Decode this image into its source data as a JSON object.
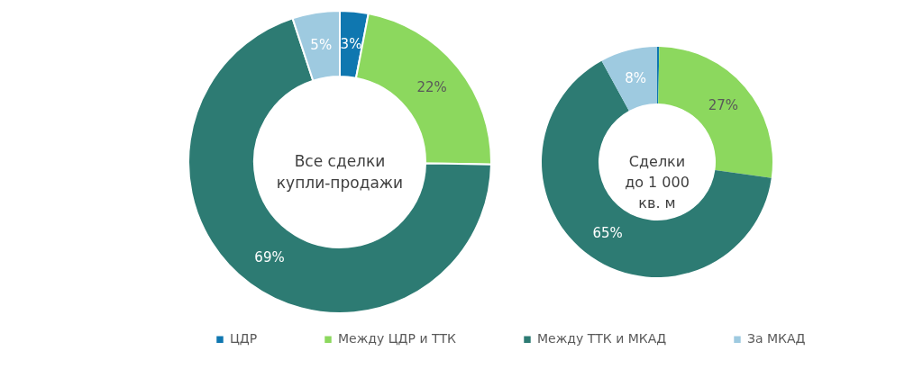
{
  "chart_data": [
    {
      "type": "donut",
      "title": "Все сделки\nкупли-продажи",
      "categories": [
        "ЦДР",
        "Между ЦДР и ТТК",
        "Между ТТК и МКАД",
        "За МКАД"
      ],
      "values": [
        3,
        22,
        69,
        5
      ],
      "value_labels": [
        "3%",
        "22%",
        "69%",
        "5%"
      ],
      "colors": [
        "#0f77b0",
        "#8cd85e",
        "#2d7b73",
        "#9ecae0"
      ],
      "legend": "bottom"
    },
    {
      "type": "donut",
      "title": "Сделки\nдо 1 000\nкв. м",
      "categories": [
        null,
        null,
        null,
        null
      ],
      "values": [
        0.3,
        27,
        65,
        8
      ],
      "value_labels": [
        null,
        "27%",
        "65%",
        "8%"
      ],
      "colors": [
        "#0f77b0",
        "#8cd85e",
        "#2d7b73",
        "#9ecae0"
      ]
    }
  ]
}
